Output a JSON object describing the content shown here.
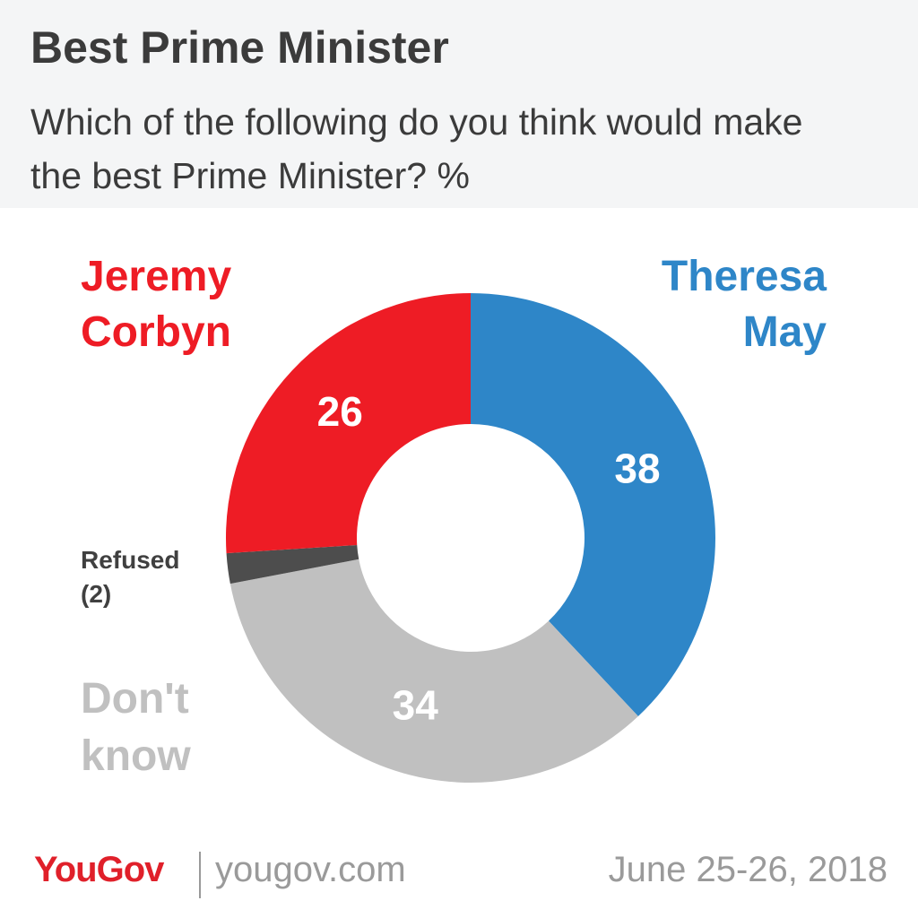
{
  "chart_data": {
    "type": "donut",
    "title": "Best Prime Minister",
    "subtitle": "Which of the following do you think would make the best Prime Minister? %",
    "categories": [
      "Theresa May",
      "Don't know",
      "Refused",
      "Jeremy Corbyn"
    ],
    "values": [
      38,
      34,
      2,
      26
    ],
    "value_labels": [
      "38",
      "34",
      "(2)",
      "26"
    ],
    "colors": [
      "#2e86c8",
      "#c0c0c0",
      "#4d4d4d",
      "#ee1c25"
    ]
  },
  "footer": {
    "brand": "YouGov",
    "url": "yougov.com",
    "date": "June 25-26, 2018"
  }
}
